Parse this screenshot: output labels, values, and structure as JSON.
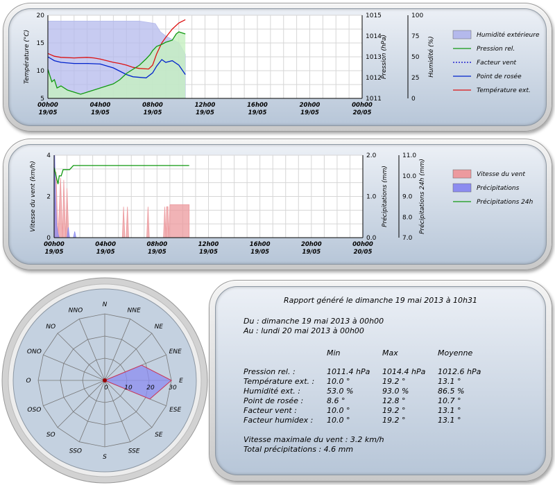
{
  "chart_data": [
    {
      "type": "line",
      "x_ticks": [
        [
          "00h00",
          "19/05"
        ],
        [
          "04h00",
          "19/05"
        ],
        [
          "08h00",
          "19/05"
        ],
        [
          "12h00",
          "19/05"
        ],
        [
          "16h00",
          "19/05"
        ],
        [
          "20h00",
          "19/05"
        ],
        [
          "00h00",
          "20/05"
        ]
      ],
      "y_left": {
        "label": "Température (°C)",
        "ticks": [
          "20",
          "15",
          "10",
          "5"
        ],
        "ylim": [
          5,
          20
        ]
      },
      "y_mid": {
        "label": "Pression (hPa)",
        "ticks": [
          "1015",
          "1014",
          "1013",
          "1012",
          "1011"
        ],
        "ylim": [
          1011,
          1015
        ]
      },
      "y_right": {
        "label": "Humidité (%)",
        "ticks": [
          "100",
          "75",
          "50",
          "25",
          "0"
        ],
        "ylim": [
          0,
          100
        ]
      },
      "legend": [
        {
          "name": "Humidité extérieure",
          "style": "area",
          "color": "#b4b9ec"
        },
        {
          "name": "Pression rel.",
          "style": "line",
          "color": "#119911"
        },
        {
          "name": "Facteur vent",
          "style": "dotted",
          "color": "#0000cc"
        },
        {
          "name": "Point de rosée",
          "style": "line",
          "color": "#0022cc"
        },
        {
          "name": "Température ext.",
          "style": "line",
          "color": "#dd1111"
        }
      ],
      "series": [
        {
          "name": "Humidité extérieure",
          "axis": "right",
          "color": "#b4b9ec",
          "points": [
            [
              0,
              93
            ],
            [
              2,
              93
            ],
            [
              4,
              93
            ],
            [
              6,
              93
            ],
            [
              7,
              93
            ],
            [
              8.2,
              90
            ],
            [
              8.6,
              80
            ],
            [
              9,
              75
            ],
            [
              9.6,
              70
            ],
            [
              10,
              67
            ],
            [
              10.5,
              53
            ]
          ]
        },
        {
          "name": "Température ext.",
          "axis": "left",
          "color": "#dd1111",
          "points": [
            [
              0,
              13.1
            ],
            [
              0.5,
              12.6
            ],
            [
              1,
              12.4
            ],
            [
              2,
              12.3
            ],
            [
              3,
              12.4
            ],
            [
              3.5,
              12.3
            ],
            [
              4,
              12.1
            ],
            [
              5,
              11.5
            ],
            [
              5.5,
              11.3
            ],
            [
              6,
              11.0
            ],
            [
              6.5,
              10.6
            ],
            [
              7,
              10.4
            ],
            [
              7.7,
              10.3
            ],
            [
              8,
              11.0
            ],
            [
              8.3,
              13.0
            ],
            [
              8.7,
              15.0
            ],
            [
              9,
              16.0
            ],
            [
              9.5,
              17.5
            ],
            [
              10,
              18.6
            ],
            [
              10.5,
              19.2
            ]
          ]
        },
        {
          "name": "Point de rosée",
          "axis": "left",
          "color": "#0022cc",
          "points": [
            [
              0,
              12.5
            ],
            [
              0.5,
              11.8
            ],
            [
              1,
              11.5
            ],
            [
              2,
              11.3
            ],
            [
              3,
              11.3
            ],
            [
              4,
              11.2
            ],
            [
              5,
              10.5
            ],
            [
              6,
              9.3
            ],
            [
              6.5,
              8.9
            ],
            [
              7.5,
              8.7
            ],
            [
              8,
              9.6
            ],
            [
              8.3,
              10.8
            ],
            [
              8.7,
              12.0
            ],
            [
              9,
              11.5
            ],
            [
              9.5,
              11.8
            ],
            [
              10,
              11.0
            ],
            [
              10.5,
              9.3
            ]
          ]
        },
        {
          "name": "Pression rel.",
          "axis": "mid",
          "color": "#119911",
          "points": [
            [
              0,
              1012.4
            ],
            [
              0.15,
              1012.1
            ],
            [
              0.3,
              1011.8
            ],
            [
              0.5,
              1011.9
            ],
            [
              0.7,
              1011.5
            ],
            [
              1,
              1011.6
            ],
            [
              1.5,
              1011.4
            ],
            [
              2,
              1011.3
            ],
            [
              2.5,
              1011.2
            ],
            [
              3,
              1011.3
            ],
            [
              3.5,
              1011.4
            ],
            [
              4,
              1011.5
            ],
            [
              4.5,
              1011.6
            ],
            [
              5,
              1011.7
            ],
            [
              5.5,
              1011.9
            ],
            [
              6,
              1012.2
            ],
            [
              6.5,
              1012.4
            ],
            [
              7,
              1012.6
            ],
            [
              7.5,
              1012.9
            ],
            [
              7.8,
              1013.1
            ],
            [
              8,
              1013.3
            ],
            [
              8.3,
              1013.5
            ],
            [
              8.7,
              1013.6
            ],
            [
              9,
              1013.7
            ],
            [
              9.5,
              1013.8
            ],
            [
              9.8,
              1014.1
            ],
            [
              10,
              1014.2
            ],
            [
              10.5,
              1014.1
            ]
          ]
        }
      ]
    },
    {
      "type": "area",
      "x_ticks": [
        [
          "00h00",
          "19/05"
        ],
        [
          "04h00",
          "19/05"
        ],
        [
          "08h00",
          "19/05"
        ],
        [
          "12h00",
          "19/05"
        ],
        [
          "16h00",
          "19/05"
        ],
        [
          "20h00",
          "19/05"
        ],
        [
          "00h00",
          "20/05"
        ]
      ],
      "y_left": {
        "label": "Vitesse du vent (km/h)",
        "ticks": [
          "4",
          "2",
          "0"
        ],
        "ylim": [
          0,
          4
        ]
      },
      "y_mid": {
        "label": "Précipitations (mm)",
        "ticks": [
          "2.0",
          "1.0",
          "0.0"
        ],
        "ylim": [
          0,
          2
        ]
      },
      "y_right": {
        "label": "Précipitations 24h (mm)",
        "ticks": [
          "11.0",
          "10.0",
          "9.0",
          "8.0",
          "7.0"
        ],
        "ylim": [
          7,
          11
        ]
      },
      "legend": [
        {
          "name": "Vitesse du vent",
          "style": "area",
          "color": "#ec9a9e"
        },
        {
          "name": "Précipitations",
          "style": "area",
          "color": "#8c8cf0"
        },
        {
          "name": "Précipitations 24h",
          "style": "line",
          "color": "#119911"
        }
      ],
      "series": [
        {
          "name": "Vitesse du vent",
          "axis": "left",
          "color": "#ec9a9e",
          "points": [
            [
              0,
              0
            ],
            [
              0.15,
              3.2
            ],
            [
              0.3,
              0
            ],
            [
              0.5,
              2.9
            ],
            [
              0.65,
              0
            ],
            [
              0.75,
              2.8
            ],
            [
              0.9,
              0
            ],
            [
              1,
              2.4
            ],
            [
              1.15,
              0
            ],
            [
              5.3,
              0
            ],
            [
              5.4,
              1.5
            ],
            [
              5.5,
              0
            ],
            [
              5.6,
              0
            ],
            [
              5.7,
              1.5
            ],
            [
              5.8,
              0
            ],
            [
              7.2,
              0
            ],
            [
              7.3,
              1.5
            ],
            [
              7.4,
              0
            ],
            [
              8.5,
              0
            ],
            [
              8.6,
              1.5
            ],
            [
              8.7,
              0
            ],
            [
              8.75,
              1.5
            ],
            [
              8.85,
              1.5
            ],
            [
              8.9,
              0
            ],
            [
              9,
              1.6
            ],
            [
              10.5,
              1.6
            ],
            [
              10.5,
              0
            ]
          ]
        },
        {
          "name": "Précipitations",
          "axis": "mid",
          "color": "#8c8cf0",
          "points": [
            [
              0,
              0
            ],
            [
              0.05,
              2.0
            ],
            [
              0.12,
              1.0
            ],
            [
              0.2,
              0.3
            ],
            [
              0.3,
              0.1
            ],
            [
              0.4,
              0
            ],
            [
              1.0,
              0
            ],
            [
              1.1,
              0.25
            ],
            [
              1.2,
              0
            ],
            [
              1.5,
              0
            ],
            [
              1.6,
              0.15
            ],
            [
              1.7,
              0
            ]
          ]
        },
        {
          "name": "Précipitations 24h",
          "axis": "right",
          "color": "#119911",
          "points": [
            [
              0,
              10.4
            ],
            [
              0.15,
              10.0
            ],
            [
              0.3,
              9.6
            ],
            [
              0.4,
              10.0
            ],
            [
              0.55,
              10.0
            ],
            [
              0.7,
              10.3
            ],
            [
              1.2,
              10.3
            ],
            [
              1.5,
              10.5
            ],
            [
              10.5,
              10.5
            ]
          ]
        }
      ]
    },
    {
      "type": "radar",
      "directions": [
        "N",
        "NNE",
        "NE",
        "ENE",
        "E",
        "ESE",
        "SE",
        "SSE",
        "S",
        "SSO",
        "SO",
        "OSO",
        "O",
        "ONO",
        "NO",
        "NNO"
      ],
      "radial_ticks": [
        "0",
        "10",
        "20",
        "30"
      ],
      "rmax": 30,
      "fill_color": "#8c8cf0",
      "wind_color": "#ec9a9e",
      "values": [
        0,
        0,
        0,
        18,
        30,
        22,
        0,
        0,
        0,
        0,
        0,
        0,
        0,
        0,
        0,
        0
      ]
    }
  ],
  "report": {
    "title": "Rapport généré le dimanche 19 mai 2013 à 10h31",
    "from": "Du : dimanche 19 mai 2013 à 00h00",
    "to": "Au : lundi 20 mai 2013 à 00h00",
    "headers": [
      "Min",
      "Max",
      "Moyenne"
    ],
    "rows": [
      {
        "label": "Pression rel. :",
        "min": "1011.4 hPa",
        "max": "1014.4 hPa",
        "avg": "1012.6 hPa"
      },
      {
        "label": "Température ext. :",
        "min": "10.0 °",
        "max": "19.2 °",
        "avg": "13.1 °"
      },
      {
        "label": "Humidité ext. :",
        "min": "53.0 %",
        "max": "93.0 %",
        "avg": "86.5 %"
      },
      {
        "label": "Point de rosée :",
        "min": "8.6 °",
        "max": "12.8 °",
        "avg": "10.7 °"
      },
      {
        "label": "Facteur vent :",
        "min": "10.0 °",
        "max": "19.2 °",
        "avg": "13.1 °"
      },
      {
        "label": "Facteur humidex :",
        "min": "10.0 °",
        "max": "19.2 °",
        "avg": "13.1 °"
      }
    ],
    "max_wind": "Vitesse maximale du vent : 3.2 km/h",
    "total_rain": "Total précipitations : 4.6 mm"
  }
}
